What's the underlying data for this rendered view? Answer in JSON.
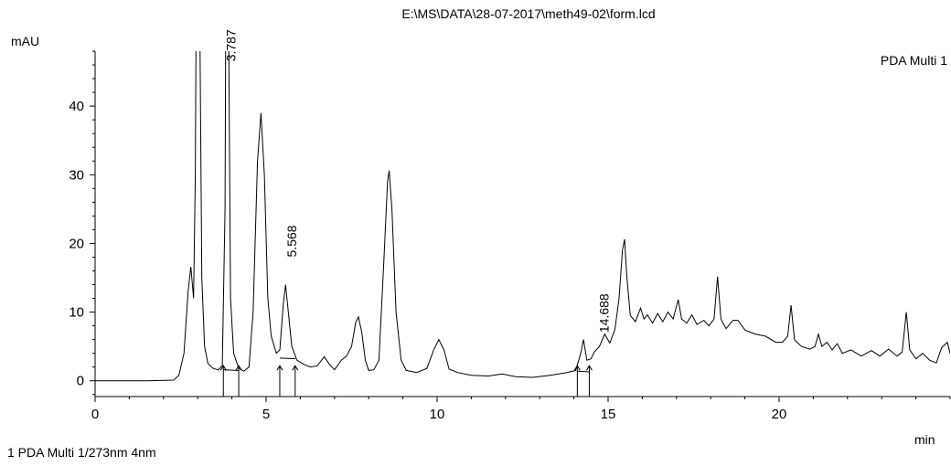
{
  "chart_data": {
    "type": "line",
    "title": "E:\\MS\\DATA\\28-07-2017\\meth49-02\\form.lcd",
    "ylabel": "mAU",
    "xlabel": "min",
    "xlim": [
      0,
      25
    ],
    "ylim": [
      -2.3,
      48
    ],
    "x_ticks": [
      0,
      5,
      10,
      15,
      20
    ],
    "y_ticks": [
      0,
      10,
      20,
      30,
      40
    ],
    "legend": "top-right",
    "line_color": "#000000",
    "series": [
      {
        "name": "PDA Multi 1",
        "points": [
          [
            0,
            0
          ],
          [
            1.5,
            0
          ],
          [
            2.3,
            0.1
          ],
          [
            2.45,
            0.8
          ],
          [
            2.6,
            4
          ],
          [
            2.72,
            13
          ],
          [
            2.8,
            16.6
          ],
          [
            2.88,
            12
          ],
          [
            2.93,
            30
          ],
          [
            2.98,
            80
          ],
          [
            3.05,
            60
          ],
          [
            3.12,
            15
          ],
          [
            3.2,
            5
          ],
          [
            3.3,
            2.5
          ],
          [
            3.45,
            1.8
          ],
          [
            3.6,
            1.6
          ],
          [
            3.72,
            2.2
          ],
          [
            3.8,
            25
          ],
          [
            3.84,
            80
          ],
          [
            3.9,
            55
          ],
          [
            3.96,
            12
          ],
          [
            4.05,
            4
          ],
          [
            4.2,
            1.8
          ],
          [
            4.35,
            1.4
          ],
          [
            4.5,
            2
          ],
          [
            4.62,
            10
          ],
          [
            4.75,
            32
          ],
          [
            4.85,
            39
          ],
          [
            4.95,
            30
          ],
          [
            5.05,
            12
          ],
          [
            5.15,
            6.5
          ],
          [
            5.3,
            4
          ],
          [
            5.4,
            4.5
          ],
          [
            5.5,
            11
          ],
          [
            5.57,
            14
          ],
          [
            5.65,
            10
          ],
          [
            5.75,
            5
          ],
          [
            5.9,
            3
          ],
          [
            6.1,
            2.4
          ],
          [
            6.3,
            2
          ],
          [
            6.5,
            2.2
          ],
          [
            6.7,
            3.5
          ],
          [
            6.85,
            2.4
          ],
          [
            7.0,
            1.6
          ],
          [
            7.2,
            3
          ],
          [
            7.35,
            3.6
          ],
          [
            7.5,
            5
          ],
          [
            7.62,
            8.5
          ],
          [
            7.7,
            9.3
          ],
          [
            7.8,
            7
          ],
          [
            7.9,
            3
          ],
          [
            8.0,
            1.5
          ],
          [
            8.15,
            1.6
          ],
          [
            8.3,
            3
          ],
          [
            8.45,
            18
          ],
          [
            8.55,
            29
          ],
          [
            8.6,
            30.6
          ],
          [
            8.68,
            25
          ],
          [
            8.8,
            10
          ],
          [
            8.95,
            3
          ],
          [
            9.1,
            1.5
          ],
          [
            9.4,
            1.2
          ],
          [
            9.7,
            1.8
          ],
          [
            9.9,
            4.5
          ],
          [
            10.05,
            6
          ],
          [
            10.2,
            4.5
          ],
          [
            10.35,
            1.7
          ],
          [
            10.6,
            1.2
          ],
          [
            11.0,
            0.8
          ],
          [
            11.5,
            0.7
          ],
          [
            11.9,
            1
          ],
          [
            12.3,
            0.6
          ],
          [
            12.8,
            0.5
          ],
          [
            13.3,
            0.8
          ],
          [
            13.8,
            1.2
          ],
          [
            14.05,
            1.5
          ],
          [
            14.2,
            4
          ],
          [
            14.28,
            6
          ],
          [
            14.38,
            3
          ],
          [
            14.5,
            3.2
          ],
          [
            14.6,
            4.2
          ],
          [
            14.75,
            5
          ],
          [
            14.9,
            6.8
          ],
          [
            15.05,
            5.5
          ],
          [
            15.2,
            7.5
          ],
          [
            15.32,
            12
          ],
          [
            15.42,
            19
          ],
          [
            15.48,
            20.6
          ],
          [
            15.55,
            15
          ],
          [
            15.65,
            9.5
          ],
          [
            15.8,
            8.6
          ],
          [
            15.95,
            10.6
          ],
          [
            16.05,
            9
          ],
          [
            16.15,
            9.6
          ],
          [
            16.3,
            8.4
          ],
          [
            16.45,
            9.8
          ],
          [
            16.6,
            8.6
          ],
          [
            16.75,
            10
          ],
          [
            16.9,
            9
          ],
          [
            17.05,
            11.8
          ],
          [
            17.15,
            9
          ],
          [
            17.3,
            8.4
          ],
          [
            17.45,
            9.6
          ],
          [
            17.6,
            8.2
          ],
          [
            17.8,
            8.8
          ],
          [
            17.95,
            8
          ],
          [
            18.1,
            9
          ],
          [
            18.2,
            15.2
          ],
          [
            18.3,
            9
          ],
          [
            18.45,
            7.6
          ],
          [
            18.65,
            8.8
          ],
          [
            18.8,
            8.8
          ],
          [
            19.0,
            7.4
          ],
          [
            19.3,
            6.8
          ],
          [
            19.6,
            6.5
          ],
          [
            19.9,
            5.6
          ],
          [
            20.1,
            5.6
          ],
          [
            20.25,
            6.5
          ],
          [
            20.35,
            11
          ],
          [
            20.45,
            6
          ],
          [
            20.65,
            5
          ],
          [
            20.9,
            4.6
          ],
          [
            21.05,
            5
          ],
          [
            21.15,
            6.8
          ],
          [
            21.25,
            5
          ],
          [
            21.4,
            5.6
          ],
          [
            21.55,
            4.5
          ],
          [
            21.7,
            5.4
          ],
          [
            21.85,
            4
          ],
          [
            22.1,
            4.5
          ],
          [
            22.4,
            3.6
          ],
          [
            22.7,
            4.4
          ],
          [
            22.95,
            3.6
          ],
          [
            23.2,
            4.6
          ],
          [
            23.45,
            3.6
          ],
          [
            23.6,
            4.2
          ],
          [
            23.72,
            10
          ],
          [
            23.82,
            4.5
          ],
          [
            24.0,
            3.2
          ],
          [
            24.2,
            4
          ],
          [
            24.4,
            3
          ],
          [
            24.6,
            2.6
          ],
          [
            24.75,
            4.8
          ],
          [
            24.92,
            5.6
          ],
          [
            25.0,
            4
          ]
        ]
      }
    ],
    "peak_labels": [
      {
        "x": 3.787,
        "y": 46.5,
        "text": "3.787"
      },
      {
        "x": 5.568,
        "y": 18,
        "text": "5.568"
      },
      {
        "x": 14.688,
        "y": 7,
        "text": "14.688"
      }
    ],
    "integration_markers": [
      3.75,
      4.2,
      5.4,
      5.85,
      14.1,
      14.45
    ],
    "baseline_segments": [
      {
        "x": [
          3.75,
          4.2
        ],
        "y": [
          1.6,
          1.5
        ]
      },
      {
        "x": [
          5.4,
          5.85
        ],
        "y": [
          3.3,
          3.2
        ]
      },
      {
        "x": [
          14.1,
          14.45
        ],
        "y": [
          1.4,
          1.3
        ]
      }
    ],
    "footer": "1  PDA Multi 1/273nm 4nm"
  }
}
